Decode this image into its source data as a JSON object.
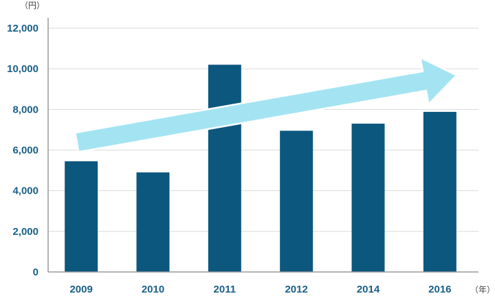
{
  "chart_data": {
    "type": "bar",
    "categories": [
      "2009",
      "2010",
      "2011",
      "2012",
      "2014",
      "2016"
    ],
    "values": [
      5450,
      4900,
      10200,
      6950,
      7300,
      7880
    ],
    "ylim": [
      0,
      12000
    ],
    "yticks": [
      0,
      2000,
      4000,
      6000,
      8000,
      10000,
      12000
    ],
    "ytick_labels": [
      "0",
      "2,000",
      "4,000",
      "6,000",
      "8,000",
      "10,000",
      "12,000"
    ],
    "y_unit": "（円）",
    "x_unit": "（年）",
    "grid": true,
    "trend_arrow": "upward"
  },
  "colors": {
    "bar": "#0c577e",
    "arrow": "#a4e4f2",
    "tick_text": "#1a5f86",
    "unit_text": "#444444",
    "grid": "#d9d9d9",
    "axis": "#999999"
  }
}
